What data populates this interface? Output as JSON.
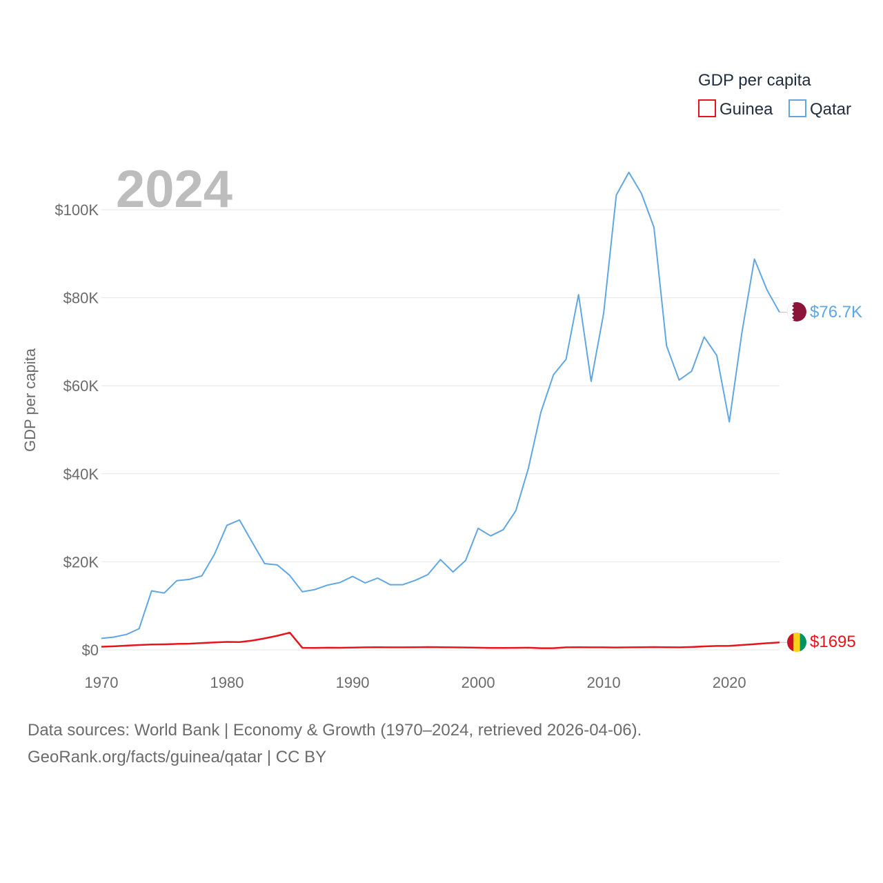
{
  "chart_data": {
    "type": "line",
    "title": "GDP per capita",
    "ylabel": "GDP per capita",
    "xlabel": "",
    "year_label": "2024",
    "xlim": [
      1970,
      2024
    ],
    "ylim": [
      0,
      110000
    ],
    "y_ticks": [
      {
        "value": 0,
        "label": "$0"
      },
      {
        "value": 20000,
        "label": "$20K"
      },
      {
        "value": 40000,
        "label": "$40K"
      },
      {
        "value": 60000,
        "label": "$60K"
      },
      {
        "value": 80000,
        "label": "$80K"
      },
      {
        "value": 100000,
        "label": "$100K"
      }
    ],
    "x_ticks": [
      {
        "value": 1970,
        "label": "1970"
      },
      {
        "value": 1980,
        "label": "1980"
      },
      {
        "value": 1990,
        "label": "1990"
      },
      {
        "value": 2000,
        "label": "2000"
      },
      {
        "value": 2010,
        "label": "2010"
      },
      {
        "value": 2020,
        "label": "2020"
      }
    ],
    "legend": {
      "title": "GDP per capita",
      "placement": "top-right"
    },
    "series": [
      {
        "name": "Guinea",
        "color": "#e8141c",
        "end_label": "$1695",
        "x": [
          1970,
          1971,
          1972,
          1973,
          1974,
          1975,
          1976,
          1977,
          1978,
          1979,
          1980,
          1981,
          1982,
          1983,
          1984,
          1985,
          1986,
          1987,
          1988,
          1989,
          1990,
          1991,
          1992,
          1993,
          1994,
          1995,
          1996,
          1997,
          1998,
          1999,
          2000,
          2001,
          2002,
          2003,
          2004,
          2005,
          2006,
          2007,
          2008,
          2009,
          2010,
          2011,
          2012,
          2013,
          2014,
          2015,
          2016,
          2017,
          2018,
          2019,
          2020,
          2021,
          2022,
          2023,
          2024
        ],
        "values": [
          700,
          800,
          950,
          1100,
          1200,
          1250,
          1350,
          1400,
          1550,
          1700,
          1800,
          1750,
          2100,
          2600,
          3200,
          3900,
          450,
          420,
          480,
          470,
          520,
          560,
          600,
          570,
          560,
          580,
          620,
          600,
          570,
          540,
          480,
          430,
          420,
          450,
          480,
          380,
          370,
          560,
          580,
          570,
          560,
          540,
          560,
          580,
          620,
          600,
          570,
          650,
          780,
          880,
          900,
          1100,
          1300,
          1500,
          1695
        ]
      },
      {
        "name": "Qatar",
        "color": "#5fa6e3",
        "end_label": "$76.7K",
        "x": [
          1970,
          1971,
          1972,
          1973,
          1974,
          1975,
          1976,
          1977,
          1978,
          1979,
          1980,
          1981,
          1982,
          1983,
          1984,
          1985,
          1986,
          1987,
          1988,
          1989,
          1990,
          1991,
          1992,
          1993,
          1994,
          1995,
          1996,
          1997,
          1998,
          1999,
          2000,
          2001,
          2002,
          2003,
          2004,
          2005,
          2006,
          2007,
          2008,
          2009,
          2010,
          2011,
          2012,
          2013,
          2014,
          2015,
          2016,
          2017,
          2018,
          2019,
          2020,
          2021,
          2022,
          2023,
          2024
        ],
        "values": [
          2600,
          2900,
          3500,
          4800,
          13400,
          12900,
          15700,
          16000,
          16800,
          21700,
          28300,
          29500,
          24500,
          19600,
          19300,
          16900,
          13200,
          13700,
          14700,
          15300,
          16700,
          15200,
          16300,
          14800,
          14800,
          15800,
          17100,
          20500,
          17700,
          20300,
          27600,
          25900,
          27300,
          31600,
          41200,
          54000,
          62500,
          66000,
          80700,
          61000,
          76500,
          103300,
          108500,
          103700,
          96000,
          69100,
          61300,
          63300,
          71100,
          66900,
          51800,
          72000,
          88800,
          81800,
          76700
        ]
      }
    ]
  },
  "legend_items": [
    {
      "label": "Guinea"
    },
    {
      "label": "Qatar"
    }
  ],
  "footer": {
    "line1": "Data sources: World Bank | Economy & Growth (1970–2024, retrieved 2026-04-06).",
    "line2": "GeoRank.org/facts/guinea/qatar | CC BY"
  }
}
